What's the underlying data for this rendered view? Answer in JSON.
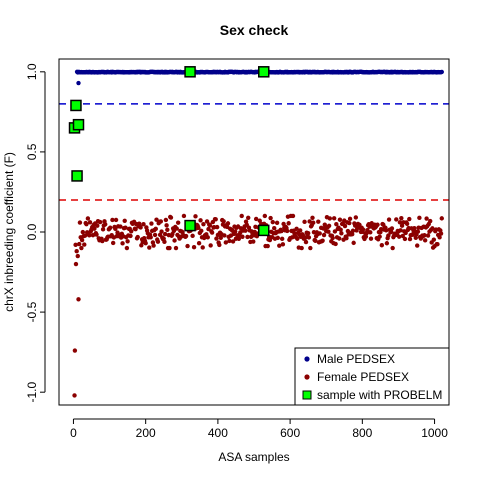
{
  "chart_data": {
    "type": "scatter",
    "title": "Sex check",
    "xlabel": "ASA samples",
    "ylabel": "chrX inbreeding coefficient (F)",
    "xlim": [
      -40,
      1040
    ],
    "ylim": [
      -1.08,
      1.08
    ],
    "x_ticks": [
      0,
      200,
      400,
      600,
      800,
      1000
    ],
    "x_tick_labels": [
      "0",
      "200",
      "400",
      "600",
      "800",
      "1000"
    ],
    "y_ticks": [
      -1.0,
      -0.5,
      0.0,
      0.5,
      1.0
    ],
    "y_tick_labels": [
      "-1.0",
      "-0.5",
      "0.0",
      "0.5",
      "1.0"
    ],
    "grid": false,
    "thresholds": [
      {
        "y": 0.8,
        "color": "#0000cc",
        "style": "dashed"
      },
      {
        "y": 0.2,
        "color": "#dd0000",
        "style": "dashed"
      }
    ],
    "series": [
      {
        "name": "Male PEDSEX",
        "color": "#00008b",
        "marker": "dot",
        "x_range": [
          10,
          1020
        ],
        "typical_y": 1.0,
        "outliers": [
          [
            14,
            0.93
          ]
        ]
      },
      {
        "name": "Female PEDSEX",
        "color": "#8b0000",
        "marker": "dot",
        "x_range": [
          0,
          1020
        ],
        "typical_y": 0.0,
        "y_spread": [
          -0.1,
          0.1
        ],
        "outliers": [
          [
            3,
            -1.02
          ],
          [
            4,
            -0.74
          ],
          [
            7,
            -0.2
          ],
          [
            9,
            -0.12
          ],
          [
            14,
            -0.42
          ],
          [
            6,
            -0.08
          ],
          [
            12,
            -0.15
          ]
        ]
      },
      {
        "name": "sample with PROBELM",
        "color": "#00ff00",
        "marker": "square",
        "points": [
          [
            3,
            0.65
          ],
          [
            7,
            0.79
          ],
          [
            10,
            0.35
          ],
          [
            14,
            0.67
          ],
          [
            323,
            1.0
          ],
          [
            527,
            1.0
          ],
          [
            323,
            0.04
          ],
          [
            527,
            0.01
          ]
        ]
      }
    ],
    "legend": {
      "position": "bottom-right",
      "entries": [
        "Male PEDSEX",
        "Female PEDSEX",
        "sample with PROBELM"
      ]
    }
  }
}
